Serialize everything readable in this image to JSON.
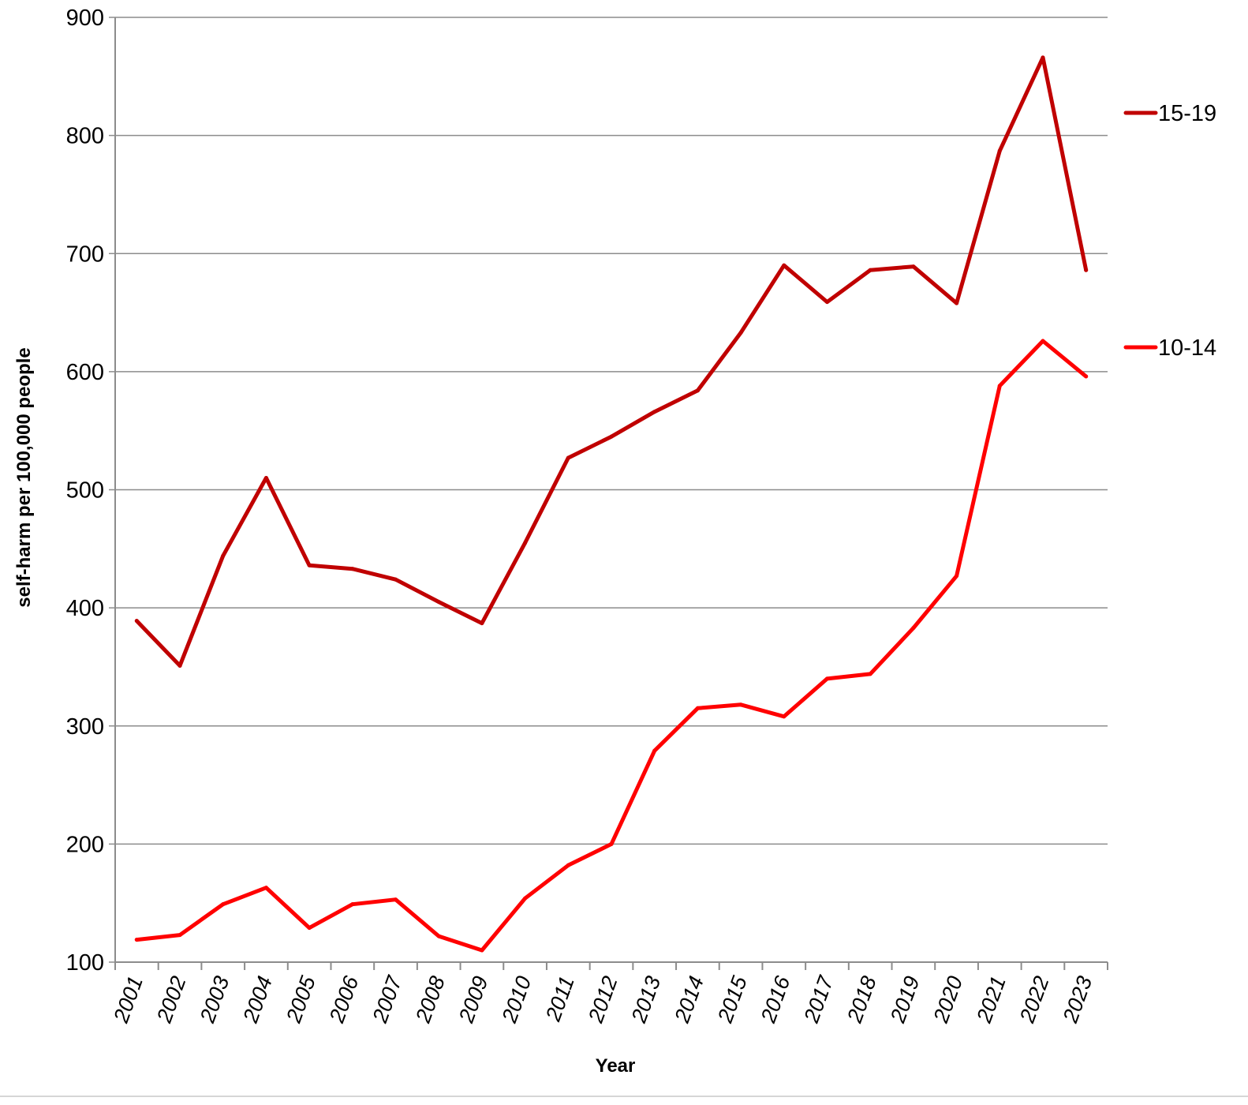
{
  "chart_data": {
    "type": "line",
    "categories": [
      "2001",
      "2002",
      "2003",
      "2004",
      "2005",
      "2006",
      "2007",
      "2008",
      "2009",
      "2010",
      "2011",
      "2012",
      "2013",
      "2014",
      "2015",
      "2016",
      "2017",
      "2018",
      "2019",
      "2020",
      "2021",
      "2022",
      "2023"
    ],
    "series": [
      {
        "name": "15-19",
        "color": "#c00000",
        "values": [
          389,
          351,
          444,
          510,
          436,
          433,
          424,
          405,
          387,
          455,
          527,
          545,
          566,
          584,
          633,
          690,
          659,
          686,
          689,
          658,
          787,
          866,
          686
        ]
      },
      {
        "name": "10-14",
        "color": "#ff0000",
        "values": [
          119,
          123,
          149,
          163,
          129,
          149,
          153,
          122,
          110,
          154,
          182,
          200,
          279,
          315,
          318,
          308,
          340,
          344,
          383,
          427,
          588,
          626,
          596
        ]
      }
    ],
    "xlabel": "Year",
    "ylabel": "self-harm per 100,000 people",
    "ylim": [
      100,
      900
    ],
    "yticks": [
      "100",
      "200",
      "300",
      "400",
      "500",
      "600",
      "700",
      "800",
      "900"
    ],
    "grid": true,
    "legend_position": "right"
  }
}
